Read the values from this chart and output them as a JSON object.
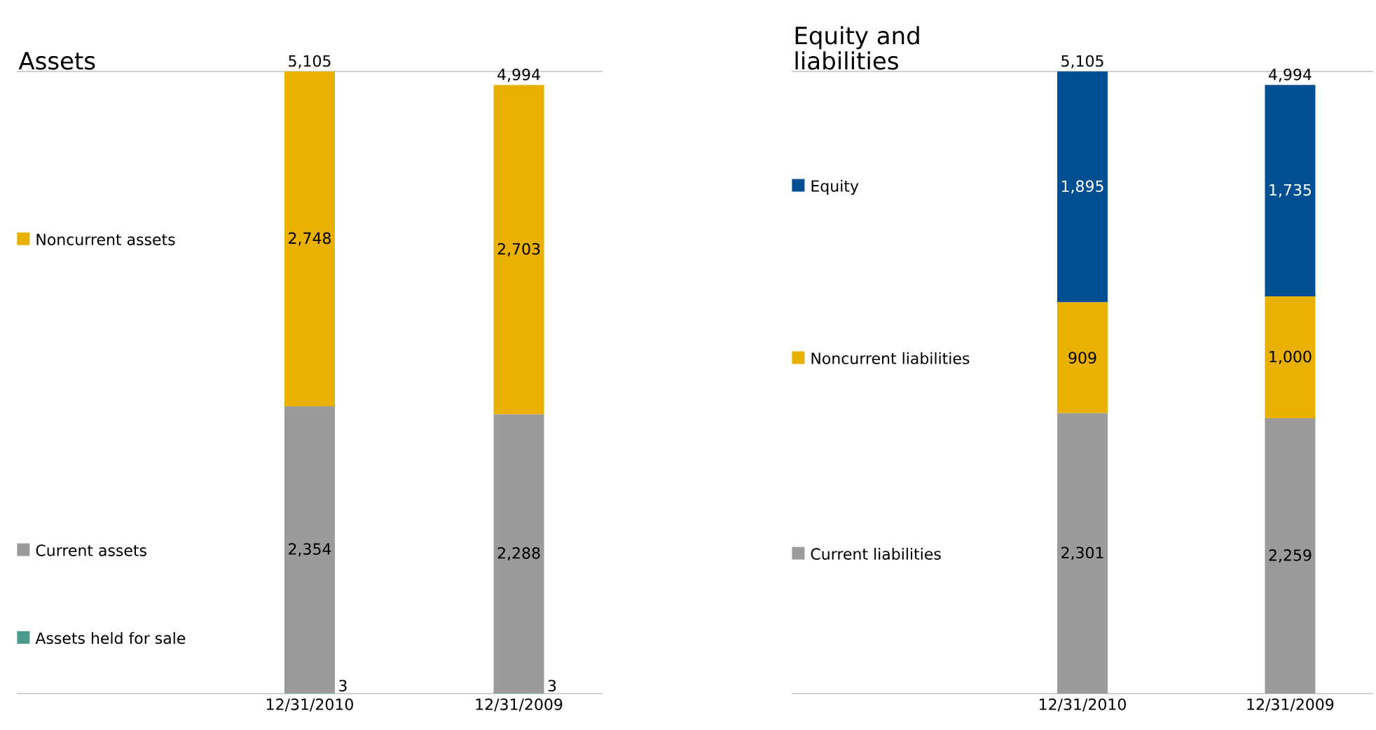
{
  "chart_data": [
    {
      "type": "bar",
      "title": "Assets",
      "stacked": true,
      "legend": "left",
      "categories": [
        "12/31/2010",
        "12/31/2009"
      ],
      "totals": [
        "5,105",
        "4,994"
      ],
      "series": [
        {
          "name": "Assets held for sale",
          "color": "#4a9a8e",
          "values": [
            3,
            3
          ],
          "value_labels": [
            "3",
            "3"
          ]
        },
        {
          "name": "Current assets",
          "color": "#9b9b9b",
          "values": [
            2354,
            2288
          ],
          "value_labels": [
            "2,354",
            "2,288"
          ]
        },
        {
          "name": "Noncurrent assets",
          "color": "#e9b000",
          "values": [
            2748,
            2703
          ],
          "value_labels": [
            "2,748",
            "2,703"
          ]
        }
      ]
    },
    {
      "type": "bar",
      "title": "Equity and liabilities",
      "stacked": true,
      "legend": "left",
      "categories": [
        "12/31/2010",
        "12/31/2009"
      ],
      "totals": [
        "5,105",
        "4,994"
      ],
      "series": [
        {
          "name": "Current liabilities",
          "color": "#9b9b9b",
          "values": [
            2301,
            2259
          ],
          "value_labels": [
            "2,301",
            "2,259"
          ]
        },
        {
          "name": "Noncurrent liabilities",
          "color": "#e9b000",
          "values": [
            909,
            1000
          ],
          "value_labels": [
            "909",
            "1,000"
          ]
        },
        {
          "name": "Equity",
          "color": "#004f93",
          "values": [
            1895,
            1735
          ],
          "value_labels": [
            "1,895",
            "1,735"
          ]
        }
      ]
    }
  ]
}
